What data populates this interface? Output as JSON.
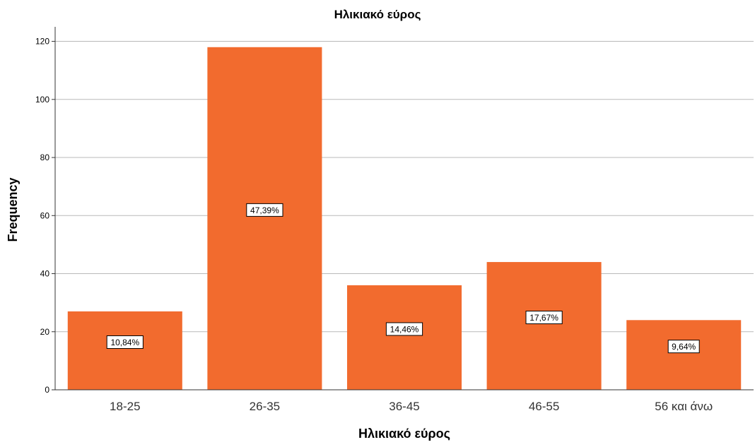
{
  "chart_data": {
    "type": "bar",
    "title": "Ηλικιακό εύρος",
    "xlabel": "Ηλικιακό εύρος",
    "ylabel": "Frequency",
    "categories": [
      "18-25",
      "26-35",
      "36-45",
      "46-55",
      "56 και άνω"
    ],
    "values": [
      27,
      118,
      36,
      44,
      24
    ],
    "data_labels": [
      "10,84%",
      "47,39%",
      "14,46%",
      "17,67%",
      "9,64%"
    ],
    "ylim": [
      0,
      125
    ],
    "yticks": [
      0,
      20,
      40,
      60,
      80,
      100,
      120
    ],
    "grid": true,
    "legend": "none",
    "bar_color": "#F26B2E"
  }
}
